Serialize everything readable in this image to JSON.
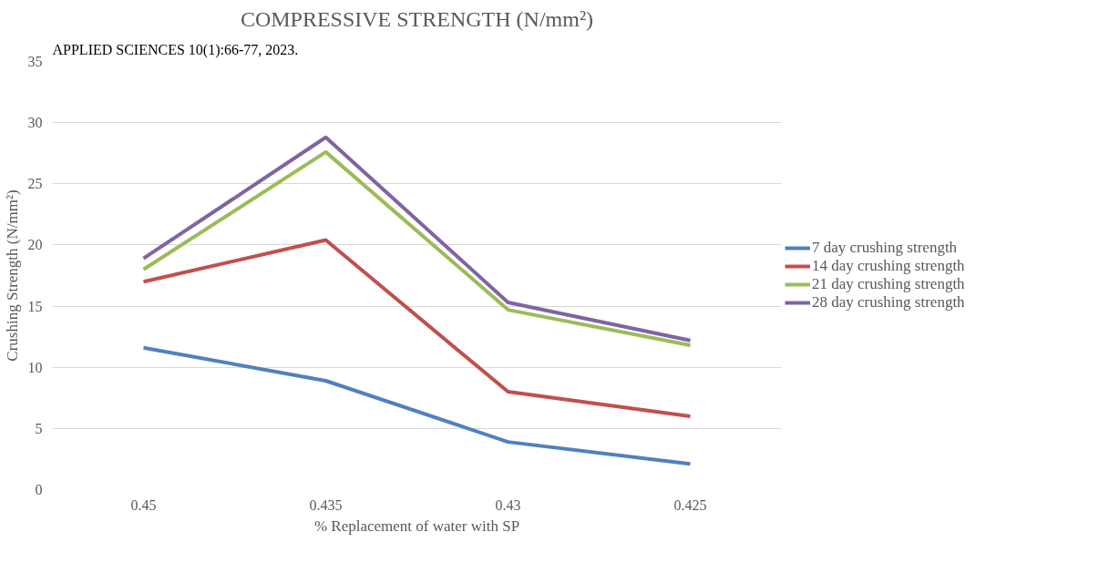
{
  "chart_data": {
    "type": "line",
    "title": "COMPRESSIVE STRENGTH (N/mm²)",
    "xlabel": "% Replacement of water with SP",
    "ylabel": "Crushing Strength (N/mm²)",
    "annotations": [
      "APPLIED SCIENCES 10(1):66-77, 2023."
    ],
    "categories": [
      "0.45",
      "0.435",
      "0.43",
      "0.425"
    ],
    "series": [
      {
        "name": "7 day crushing strength",
        "color": "#4f81bd",
        "values": [
          11.6,
          8.9,
          3.9,
          2.1
        ]
      },
      {
        "name": "14 day crushing strength",
        "color": "#c0504d",
        "values": [
          17.0,
          20.4,
          8.0,
          6.0
        ]
      },
      {
        "name": "21 day crushing strength",
        "color": "#9bbb59",
        "values": [
          18.0,
          27.6,
          14.7,
          11.8
        ]
      },
      {
        "name": "28 day crushing strength",
        "color": "#8064a2",
        "values": [
          18.9,
          28.8,
          15.3,
          12.2
        ]
      }
    ],
    "ylim": [
      0,
      35
    ],
    "yticks": [
      0,
      5,
      10,
      15,
      20,
      25,
      30,
      35
    ],
    "grid": "y",
    "legend": "right",
    "marker": "none",
    "line_style": "solid"
  }
}
